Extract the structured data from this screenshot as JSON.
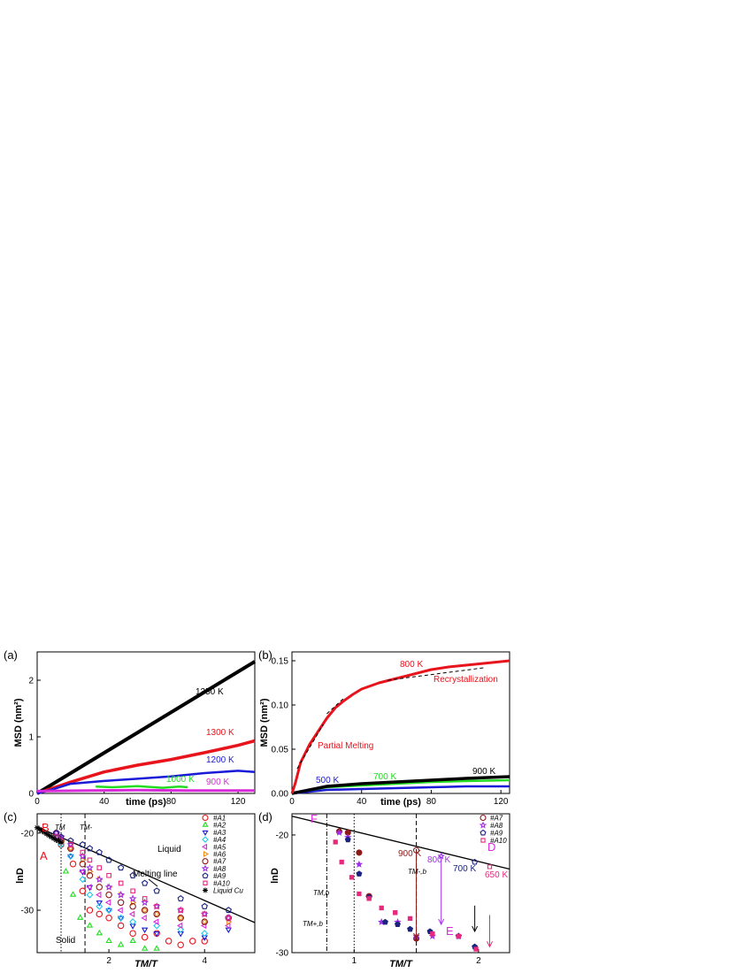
{
  "colors": {
    "black": "#000000",
    "red": "#e8141c",
    "blue": "#1a1ad8",
    "green": "#22dd22",
    "magenta": "#d82ad8",
    "cyan": "#22c8e8",
    "orange": "#f08c1e",
    "violet": "#a030e8",
    "darkred": "#8b1a1a",
    "navy": "#1a237e",
    "pink": "#e8287c"
  },
  "chart_data": [
    {
      "panel": "(a)",
      "type": "line",
      "xlabel": "time (ps)",
      "ylabel": "MSD (nm²)",
      "xlim": [
        0,
        130
      ],
      "ylim": [
        0,
        2.5
      ],
      "xticks": [
        "0",
        "40",
        "80",
        "120"
      ],
      "yticks": [
        "0",
        "1",
        "2"
      ],
      "series": [
        {
          "name": "1350 K",
          "color": "#000000",
          "x": [
            0,
            130
          ],
          "y": [
            0,
            2.33
          ]
        },
        {
          "name": "1300 K",
          "color": "#e8141c",
          "x": [
            0,
            20,
            40,
            60,
            80,
            100,
            120,
            130
          ],
          "y": [
            0,
            0.2,
            0.38,
            0.5,
            0.6,
            0.72,
            0.85,
            0.93
          ]
        },
        {
          "name": "1200 K",
          "color": "#1a1ad8",
          "x": [
            0,
            10,
            20,
            40,
            60,
            80,
            100,
            120,
            130
          ],
          "y": [
            0,
            0.08,
            0.17,
            0.22,
            0.26,
            0.3,
            0.36,
            0.4,
            0.38
          ]
        },
        {
          "name": "1000 K",
          "color": "#22dd22",
          "x": [
            35,
            45,
            60,
            75,
            85,
            90
          ],
          "y": [
            0.12,
            0.11,
            0.13,
            0.1,
            0.12,
            0.11
          ]
        },
        {
          "name": "900 K",
          "color": "#d82ad8",
          "x": [
            0,
            30,
            60,
            90,
            130
          ],
          "y": [
            0.04,
            0.05,
            0.06,
            0.05,
            0.05
          ]
        }
      ]
    },
    {
      "panel": "(b)",
      "type": "line",
      "xlabel": "time (ps)",
      "ylabel": "MSD (nm²)",
      "xlim": [
        0,
        125
      ],
      "ylim": [
        0,
        0.16
      ],
      "xticks": [
        "0",
        "40",
        "80",
        "120"
      ],
      "yticks": [
        "0.00",
        "0.05",
        "0.10",
        "0.15"
      ],
      "annotations": [
        "Partial Melting",
        "Recrystallization"
      ],
      "series": [
        {
          "name": "800 K",
          "color": "#e8141c",
          "x": [
            0,
            2,
            5,
            10,
            15,
            20,
            25,
            30,
            35,
            40,
            50,
            60,
            70,
            80,
            90,
            100,
            110,
            120,
            125
          ],
          "y": [
            0,
            0.012,
            0.035,
            0.055,
            0.07,
            0.085,
            0.097,
            0.105,
            0.112,
            0.118,
            0.125,
            0.13,
            0.135,
            0.14,
            0.143,
            0.145,
            0.147,
            0.149,
            0.15
          ]
        },
        {
          "name": "900 K",
          "color": "#000000",
          "x": [
            0,
            20,
            40,
            60,
            80,
            100,
            125
          ],
          "y": [
            0,
            0.008,
            0.011,
            0.013,
            0.015,
            0.017,
            0.019
          ]
        },
        {
          "name": "700 K",
          "color": "#22dd22",
          "x": [
            0,
            20,
            40,
            60,
            80,
            100,
            125
          ],
          "y": [
            0,
            0.007,
            0.009,
            0.011,
            0.013,
            0.014,
            0.015
          ]
        },
        {
          "name": "500 K",
          "color": "#1a1ad8",
          "x": [
            0,
            20,
            40,
            60,
            80,
            100,
            125
          ],
          "y": [
            0,
            0.004,
            0.005,
            0.006,
            0.007,
            0.008,
            0.008
          ]
        }
      ]
    },
    {
      "panel": "(c)",
      "type": "scatter",
      "xlabel": "TM/T",
      "ylabel": "lnD",
      "xlim": [
        0.5,
        5.05
      ],
      "ylim": [
        -35.5,
        -17.5
      ],
      "xticks": [
        "2",
        "4"
      ],
      "yticks": [
        "-20",
        "-30"
      ],
      "labels": {
        "liquid": "Liquid",
        "solid": "Solid",
        "melting_line": "Melting line",
        "A": "A",
        "B": "B",
        "TM": "TM",
        "TMb": "TM-"
      },
      "series": [
        {
          "name": "#A1",
          "color": "#e8141c",
          "shape": "circle",
          "x": [
            1.0,
            1.25,
            1.45,
            1.6,
            1.8,
            2.0,
            2.25,
            2.5,
            2.75,
            3.0,
            3.25,
            3.5,
            3.75,
            4.0
          ],
          "y": [
            -21.5,
            -24,
            -27.5,
            -30,
            -30.5,
            -31,
            -32,
            -33,
            -33.5,
            -33,
            -34,
            -34.5,
            -34,
            -34
          ]
        },
        {
          "name": "#A2",
          "color": "#22dd22",
          "shape": "triangle-up",
          "x": [
            1.0,
            1.1,
            1.25,
            1.4,
            1.6,
            1.8,
            2.0,
            2.25,
            2.5,
            2.75,
            3.0
          ],
          "y": [
            -21,
            -25,
            -28,
            -31,
            -32,
            -33,
            -34,
            -34.5,
            -34,
            -35,
            -35
          ]
        },
        {
          "name": "#A3",
          "color": "#1a1ad8",
          "shape": "triangle-down",
          "x": [
            1.0,
            1.2,
            1.45,
            1.6,
            1.8,
            2.0,
            2.25,
            2.5,
            2.75,
            3.0,
            3.5,
            4.0,
            4.5
          ],
          "y": [
            -21,
            -23,
            -25,
            -27,
            -29,
            -30,
            -31,
            -32,
            -32.5,
            -33,
            -33,
            -33.5,
            -32.5
          ]
        },
        {
          "name": "#A4",
          "color": "#22c8e8",
          "shape": "diamond",
          "x": [
            0.9,
            1.0,
            1.2,
            1.45,
            1.6,
            1.8,
            2.0,
            2.25,
            2.5,
            3.0,
            3.5,
            4.0
          ],
          "y": [
            -20.5,
            -21.5,
            -23,
            -26,
            -28,
            -29.5,
            -30,
            -31,
            -31.5,
            -32,
            -32.5,
            -33
          ]
        },
        {
          "name": "#A5",
          "color": "#d82ad8",
          "shape": "triangle-left",
          "x": [
            0.9,
            1.0,
            1.2,
            1.45,
            1.6,
            1.8,
            2.0,
            2.25,
            2.5,
            2.75,
            3.0,
            3.5,
            4.0,
            4.5
          ],
          "y": [
            -20.5,
            -21,
            -22,
            -25,
            -27,
            -28,
            -29,
            -30,
            -30.5,
            -31,
            -31.5,
            -32,
            -32,
            -32
          ]
        },
        {
          "name": "#A6",
          "color": "#f08c1e",
          "shape": "triangle-right",
          "x": [
            1.0,
            1.2,
            1.45,
            1.6,
            1.8,
            2.0,
            2.25,
            2.5,
            2.75,
            3.0,
            3.5,
            4.0,
            4.5
          ],
          "y": [
            -21,
            -22,
            -23.5,
            -25,
            -26,
            -27,
            -28,
            -29,
            -30,
            -30.5,
            -31,
            -31.5,
            -31.5
          ]
        },
        {
          "name": "#A7",
          "color": "#8b1a1a",
          "shape": "circle",
          "x": [
            0.9,
            1.0,
            1.2,
            1.45,
            1.6,
            1.8,
            2.0,
            2.25,
            2.5,
            2.75,
            3.0,
            3.5,
            4.0,
            4.5
          ],
          "y": [
            -20,
            -21,
            -22,
            -24,
            -25.5,
            -27,
            -28,
            -29,
            -29.5,
            -30,
            -30.5,
            -31,
            -31.5,
            -31
          ]
        },
        {
          "name": "#A8",
          "color": "#a030e8",
          "shape": "star",
          "x": [
            0.9,
            1.0,
            1.2,
            1.45,
            1.6,
            1.8,
            2.0,
            2.25,
            2.5,
            2.75,
            3.0,
            3.5,
            4.0,
            4.5
          ],
          "y": [
            -20,
            -20.5,
            -21.5,
            -23,
            -24.5,
            -26,
            -27,
            -28,
            -28.5,
            -29,
            -29.5,
            -30,
            -30.5,
            -31
          ]
        },
        {
          "name": "#A9",
          "color": "#1a237e",
          "shape": "pentagon",
          "x": [
            0.9,
            1.0,
            1.2,
            1.45,
            1.6,
            1.8,
            2.0,
            2.25,
            2.5,
            2.75,
            3.0,
            3.5,
            4.0,
            4.5
          ],
          "y": [
            -20,
            -20.5,
            -21,
            -21.5,
            -22,
            -22.5,
            -23.5,
            -24.5,
            -25.5,
            -26.5,
            -27.5,
            -28.5,
            -29.5,
            -30
          ]
        },
        {
          "name": "#A10",
          "color": "#e8287c",
          "shape": "square",
          "x": [
            0.9,
            1.0,
            1.2,
            1.45,
            1.6,
            1.8,
            2.0,
            2.25,
            2.5,
            2.75,
            3.0,
            3.5,
            4.0,
            4.5
          ],
          "y": [
            -20.5,
            -21,
            -21.5,
            -22.5,
            -23.5,
            -24.5,
            -25.5,
            -26.5,
            -27.5,
            -28.5,
            -29.5,
            -30,
            -30.5,
            -31
          ]
        },
        {
          "name": "Liquid Cu",
          "color": "#000000",
          "shape": "asterisk",
          "x": [
            0.5,
            0.55,
            0.6,
            0.65,
            0.7,
            0.75,
            0.8,
            0.85,
            0.9,
            0.95,
            1.0
          ],
          "y": [
            -19.3,
            -19.5,
            -19.7,
            -19.9,
            -20.1,
            -20.3,
            -20.5,
            -20.7,
            -20.9,
            -21.0,
            -21.2
          ]
        }
      ],
      "melting_line": {
        "x": [
          0.5,
          5.05
        ],
        "y": [
          -19.2,
          -31.6
        ]
      },
      "vlines": [
        {
          "x": 1.0,
          "style": "dotted",
          "label": "TM"
        },
        {
          "x": 1.5,
          "style": "dashed",
          "label": "TM-"
        }
      ]
    },
    {
      "panel": "(d)",
      "type": "scatter",
      "xlabel": "TM/T",
      "ylabel": "lnD",
      "xlim": [
        0.5,
        2.25
      ],
      "ylim": [
        -30,
        -18.2
      ],
      "xticks": [
        "1",
        "2"
      ],
      "yticks": [
        "-20",
        "-30"
      ],
      "labels": {
        "F": "F",
        "E": "E",
        "D": "D",
        "T900": "900 K",
        "T800": "800 K",
        "T700": "700 K",
        "T650": "650 K",
        "TMb": "TM,b",
        "TMpb": "TM+,b",
        "TMmb": "TM-,b"
      },
      "series": [
        {
          "name": "#A7",
          "color": "#8b1a1a",
          "shape": "circle",
          "x": [
            0.88,
            0.95,
            1.04,
            1.12,
            1.5
          ],
          "y": [
            -19.7,
            -19.8,
            -21.5,
            -25.2,
            -28.8
          ]
        },
        {
          "name": "#A8",
          "color": "#a030e8",
          "shape": "star",
          "x": [
            0.88,
            0.95,
            1.04,
            1.12,
            1.22,
            1.35,
            1.5,
            1.63,
            1.84
          ],
          "y": [
            -19.8,
            -20.2,
            -22.5,
            -25.3,
            -27.4,
            -27.4,
            -28.6,
            -28.6,
            -28.6
          ]
        },
        {
          "name": "#A9",
          "color": "#1a237e",
          "shape": "pentagon",
          "x": [
            0.95,
            1.04,
            1.12,
            1.25,
            1.35,
            1.45,
            1.61,
            1.84,
            1.97
          ],
          "y": [
            -20.4,
            -23.3,
            -25.3,
            -27.4,
            -27.6,
            -28.0,
            -28.2,
            -28.6,
            -29.5
          ]
        },
        {
          "name": "#A10",
          "color": "#e8287c",
          "shape": "square",
          "x": [
            0.85,
            0.9,
            0.98,
            1.04,
            1.12,
            1.22,
            1.33,
            1.45,
            1.63,
            1.84,
            1.98
          ],
          "y": [
            -20.6,
            -22.3,
            -23.6,
            -25.0,
            -25.4,
            -26.2,
            -26.6,
            -27.1,
            -28.4,
            -28.6,
            -29.7
          ]
        }
      ],
      "melting_line": {
        "x": [
          0.5,
          2.25
        ],
        "y": [
          -18.4,
          -22.9
        ]
      },
      "vlines": [
        {
          "x": 0.78,
          "style": "dashdot",
          "label": "TM+,b"
        },
        {
          "x": 1.0,
          "style": "dotted",
          "label": "TM,b"
        },
        {
          "x": 1.5,
          "style": "dashed",
          "label": "TM-,b"
        }
      ]
    }
  ]
}
